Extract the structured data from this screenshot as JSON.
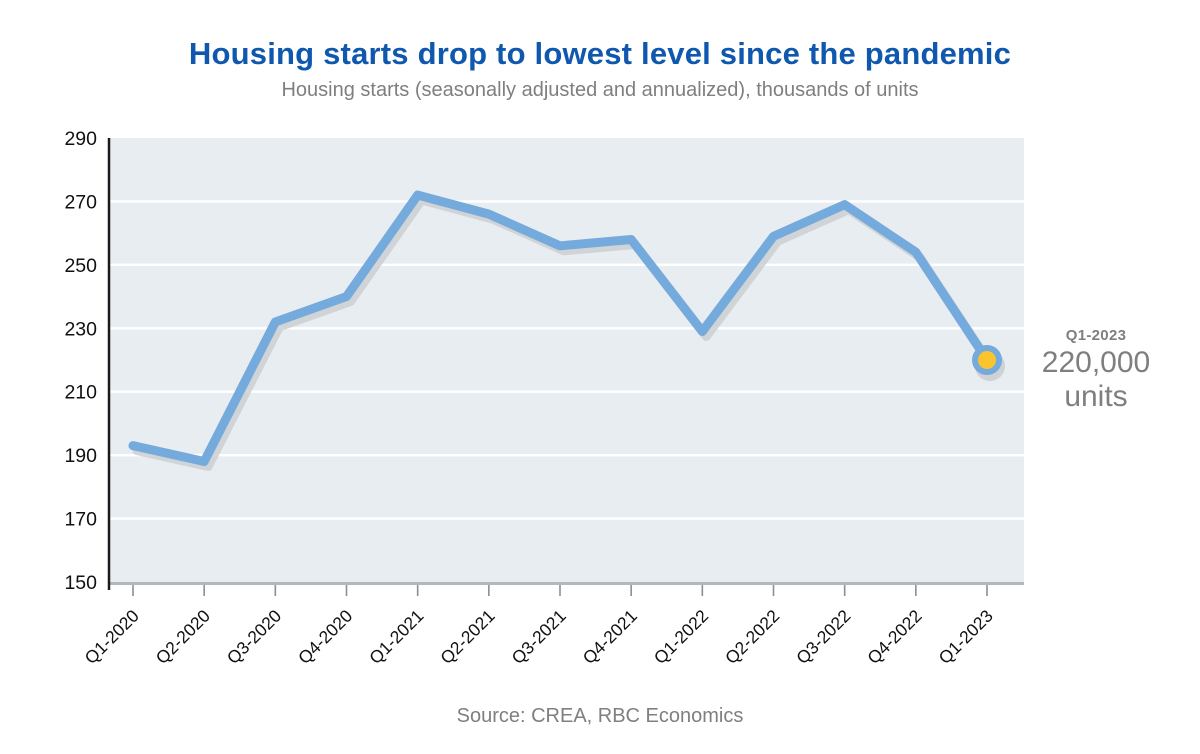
{
  "chart_data": {
    "type": "line",
    "title": "Housing starts drop to lowest level since the pandemic",
    "subtitle": "Housing starts (seasonally adjusted and annualized), thousands of units",
    "categories": [
      "Q1-2020",
      "Q2-2020",
      "Q3-2020",
      "Q4-2020",
      "Q1-2021",
      "Q2-2021",
      "Q3-2021",
      "Q4-2021",
      "Q1-2022",
      "Q2-2022",
      "Q3-2022",
      "Q4-2022",
      "Q1-2023"
    ],
    "values": [
      193,
      188,
      232,
      240,
      272,
      266,
      256,
      258,
      229,
      259,
      269,
      254,
      220
    ],
    "ylim": [
      150,
      290
    ],
    "ytick_step": 20,
    "yticks": [
      150,
      170,
      190,
      210,
      230,
      250,
      270,
      290
    ],
    "grid": true,
    "legend": "none",
    "annotation": {
      "label": "Q1-2023",
      "value": "220,000",
      "unit": "units"
    },
    "source": "Source: CREA, RBC Economics",
    "colors": {
      "title": "#0F58AE",
      "line": "#74AADC",
      "line_shadow": "#C9CDD0",
      "marker_fill": "#FAC42E",
      "plot_bg": "#E8EDF1",
      "gridline": "#FFFFFF",
      "y_axis": "#1A1A1A",
      "x_axis": "#B2B8BC",
      "tick": "#8A9094",
      "axis_text": "#111111",
      "gray_text": "#7D7F81"
    }
  }
}
